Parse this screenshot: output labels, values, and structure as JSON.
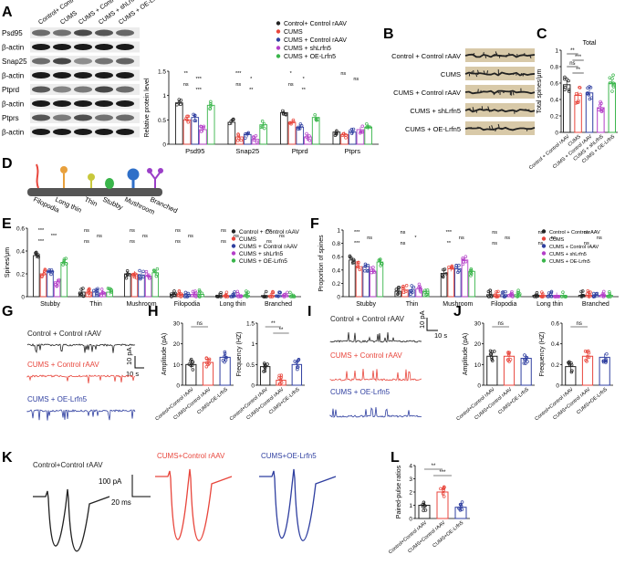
{
  "panels": {
    "A": {
      "label": "A",
      "blot_columns": [
        "Control+ Control rAAV",
        "CUMS",
        "CUMS + Control rAAV",
        "CUMS + shLrfn5",
        "CUMS + OE-Lrfn5"
      ],
      "blot_rows": [
        "Psd95",
        "β-actin",
        "Snap25",
        "β-actin",
        "Ptprd",
        "β-actin",
        "Ptprs",
        "β-actin"
      ],
      "legend": [
        "Control+ Control rAAV",
        "CUMS",
        "CUMS + Control rAAV",
        "CUMS + shLrfn5",
        "CUMS + OE-Lrfn5"
      ]
    },
    "B": {
      "label": "B",
      "rows": [
        "Control + Control rAAV",
        "CUMS",
        "CUMS + Control rAAV",
        "CUMS + shLrfn5",
        "CUMS + OE-Lrfn5"
      ]
    },
    "C": {
      "label": "C"
    },
    "D": {
      "label": "D",
      "spine_types": [
        "Filopodia",
        "Long thin",
        "Thin",
        "Stubby",
        "Mushroom",
        "Branched"
      ]
    },
    "E": {
      "label": "E"
    },
    "F": {
      "label": "F"
    },
    "G": {
      "label": "G",
      "traces": [
        "Control + Control rAAV",
        "CUMS + Control rAAV",
        "CUMS + OE-Lrfn5"
      ],
      "scale_y": "10 pA",
      "scale_x": "10 s"
    },
    "H": {
      "label": "H"
    },
    "I": {
      "label": "I",
      "traces": [
        "Control + Control rAAV",
        "CUMS + Control rAAV",
        "CUMS + OE-Lrfn5"
      ],
      "scale_y": "10 pA",
      "scale_x": "10 s"
    },
    "J": {
      "label": "J"
    },
    "K": {
      "label": "K",
      "traces": [
        "Control+Control rAAV",
        "CUMS+Control rAAV",
        "CUMS+OE-Lrfn5"
      ],
      "scale_y": "100 pA",
      "scale_x": "20 ms"
    },
    "L": {
      "label": "L"
    }
  },
  "colors": {
    "black": "#222222",
    "red": "#e8463c",
    "blue": "#2f3fa0",
    "purple": "#b43fc8",
    "green": "#39b54a"
  },
  "chart_data": [
    {
      "id": "A-bar",
      "type": "bar",
      "title": "",
      "ylabel": "Relative protein level",
      "xlabel": "",
      "ylim": [
        0,
        1.5
      ],
      "yticks": [
        0.0,
        0.5,
        1.0,
        1.5
      ],
      "categories": [
        "Psd95",
        "Snap25",
        "Ptprd",
        "Ptprs"
      ],
      "series": [
        {
          "name": "Control+ Control rAAV",
          "values": [
            0.85,
            0.45,
            0.65,
            0.25
          ]
        },
        {
          "name": "CUMS",
          "values": [
            0.5,
            0.15,
            0.45,
            0.2
          ]
        },
        {
          "name": "CUMS + Control rAAV",
          "values": [
            0.55,
            0.2,
            0.35,
            0.25
          ]
        },
        {
          "name": "CUMS + shLrfn5",
          "values": [
            0.3,
            0.1,
            0.15,
            0.3
          ]
        },
        {
          "name": "CUMS + OE-Lrfn5",
          "values": [
            0.8,
            0.4,
            0.55,
            0.35
          ]
        }
      ],
      "annotations": [
        "**",
        "***",
        "ns",
        "***",
        "***",
        "*",
        "ns",
        "**",
        "*",
        "*",
        "ns",
        "**",
        "ns",
        "ns"
      ]
    },
    {
      "id": "C-bar",
      "type": "bar",
      "title": "Total",
      "ylabel": "Total spines/μm",
      "xlabel": "",
      "ylim": [
        0,
        1.0
      ],
      "yticks": [
        0.0,
        0.2,
        0.4,
        0.6,
        0.8,
        1.0
      ],
      "categories": [
        "Control + Control rAAV",
        "CUMS",
        "CUMS + Control rAAV",
        "CUMS + shLrfn5",
        "CUMS + OE-Lrfn5"
      ],
      "values": [
        0.58,
        0.45,
        0.48,
        0.3,
        0.6
      ],
      "annotations": [
        "**",
        "***",
        "ns",
        "**"
      ]
    },
    {
      "id": "E-bar",
      "type": "bar",
      "title": "",
      "ylabel": "Spines/μm",
      "xlabel": "",
      "ylim": [
        0,
        0.6
      ],
      "yticks": [
        0.0,
        0.2,
        0.4,
        0.6
      ],
      "categories": [
        "Stubby",
        "Thin",
        "Mushroom",
        "Filopodia",
        "Long thin",
        "Branched"
      ],
      "series": [
        {
          "name": "Control + Control rAAV",
          "values": [
            0.36,
            0.04,
            0.2,
            0.02,
            0.01,
            0.01
          ]
        },
        {
          "name": "CUMS",
          "values": [
            0.2,
            0.04,
            0.2,
            0.02,
            0.01,
            0.01
          ]
        },
        {
          "name": "CUMS + Control rAAV",
          "values": [
            0.22,
            0.04,
            0.19,
            0.02,
            0.01,
            0.01
          ]
        },
        {
          "name": "CUMS + shLrfn5",
          "values": [
            0.13,
            0.03,
            0.18,
            0.02,
            0.01,
            0.01
          ]
        },
        {
          "name": "CUMS + OE-Lrfn5",
          "values": [
            0.3,
            0.04,
            0.21,
            0.02,
            0.01,
            0.01
          ]
        }
      ],
      "legend": [
        "Control + Control rAAV",
        "CUMS",
        "CUMS + Control rAAV",
        "CUMS + shLrfn5",
        "CUMS + OE-Lrfn5"
      ],
      "annotations": [
        "***",
        "***",
        "***",
        "ns",
        "ns",
        "ns",
        "ns",
        "ns",
        "ns",
        "ns",
        "ns",
        "ns",
        "ns",
        "ns",
        "ns",
        "ns",
        "ns",
        "ns"
      ]
    },
    {
      "id": "F-bar",
      "type": "bar",
      "title": "",
      "ylabel": "Proportion of spines",
      "xlabel": "",
      "ylim": [
        0,
        1.0
      ],
      "yticks": [
        0.0,
        0.2,
        0.4,
        0.6,
        0.8,
        1.0
      ],
      "categories": [
        "Stubby",
        "Thin",
        "Mushroom",
        "Filopodia",
        "Long thin",
        "Branched"
      ],
      "series": [
        {
          "name": "Control + Control rAAV",
          "values": [
            0.55,
            0.08,
            0.35,
            0.03,
            0.02,
            0.02
          ]
        },
        {
          "name": "CUMS",
          "values": [
            0.45,
            0.1,
            0.42,
            0.03,
            0.02,
            0.02
          ]
        },
        {
          "name": "CUMS + Control rAAV",
          "values": [
            0.45,
            0.1,
            0.42,
            0.03,
            0.02,
            0.02
          ]
        },
        {
          "name": "CUMS + shLrfn5",
          "values": [
            0.38,
            0.12,
            0.55,
            0.03,
            0.02,
            0.02
          ]
        },
        {
          "name": "CUMS + OE-Lrfn5",
          "values": [
            0.52,
            0.08,
            0.38,
            0.03,
            0.02,
            0.02
          ]
        }
      ],
      "legend": [
        "Control + Control rAAV",
        "CUMS",
        "CUMS + Control rAAV",
        "CUMS + shLrfn5",
        "CUMS + OE-Lrfn5"
      ],
      "annotations": [
        "***",
        "ns",
        "***",
        "ns",
        "*",
        "ns",
        "***",
        "ns",
        "**",
        "ns",
        "ns",
        "ns",
        "ns",
        "ns",
        "ns",
        "ns",
        "ns",
        "ns"
      ]
    },
    {
      "id": "H-amp",
      "type": "bar",
      "ylabel": "Amplitude (pA)",
      "ylim": [
        0,
        30
      ],
      "yticks": [
        0,
        10,
        20,
        30
      ],
      "categories": [
        "Control+Control rAAV",
        "CUMS+Control rAAV",
        "CUMS+OE-Lrfn5"
      ],
      "values": [
        10,
        11,
        13.5
      ],
      "annotations": [
        "ns"
      ]
    },
    {
      "id": "H-freq",
      "type": "bar",
      "ylabel": "Frequency (HZ)",
      "ylim": [
        0,
        1.5
      ],
      "yticks": [
        0.0,
        0.5,
        1.0,
        1.5
      ],
      "categories": [
        "Control+Control rAAV",
        "CUMS+Control rAAV",
        "CUMS+OE-Lrfn5"
      ],
      "values": [
        0.45,
        0.12,
        0.5
      ],
      "annotations": [
        "**",
        "**"
      ]
    },
    {
      "id": "J-amp",
      "type": "bar",
      "ylabel": "Amplitude (pA)",
      "ylim": [
        0,
        30
      ],
      "yticks": [
        0,
        10,
        20,
        30
      ],
      "categories": [
        "Control+Control rAAV",
        "CUMS+Control rAAV",
        "CUMS+OE-Lrfn5"
      ],
      "values": [
        14,
        14,
        13
      ],
      "annotations": [
        "ns"
      ]
    },
    {
      "id": "J-freq",
      "type": "bar",
      "ylabel": "Frequency (HZ)",
      "ylim": [
        0,
        0.6
      ],
      "yticks": [
        0.0,
        0.2,
        0.4,
        0.6
      ],
      "categories": [
        "Control+Control rAAV",
        "CUMS+Control rAAV",
        "CUMS+OE-Lrfn5"
      ],
      "values": [
        0.18,
        0.28,
        0.27
      ],
      "annotations": [
        "ns"
      ]
    },
    {
      "id": "L-ppr",
      "type": "bar",
      "ylabel": "Paired-pulse ratios",
      "ylim": [
        0,
        4
      ],
      "yticks": [
        0,
        1,
        2,
        3,
        4
      ],
      "categories": [
        "Control+Control rAAV",
        "CUMS+Control rAAV",
        "CUMS+OE-Lrfn5"
      ],
      "values": [
        1.0,
        2.0,
        0.85
      ],
      "annotations": [
        "**",
        "***"
      ]
    }
  ]
}
